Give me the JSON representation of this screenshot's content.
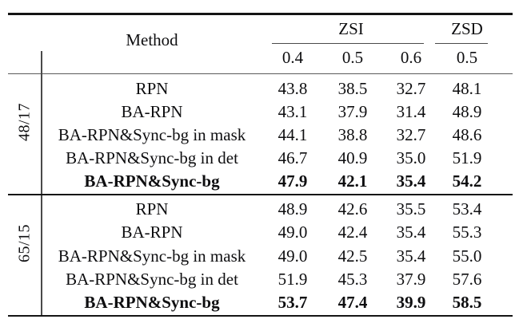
{
  "table": {
    "header": {
      "method_label": "Method",
      "zsi_label": "ZSI",
      "zsd_label": "ZSD",
      "zsi_thresholds": [
        "0.4",
        "0.5",
        "0.6"
      ],
      "zsd_threshold": "0.5"
    },
    "groups": [
      {
        "split": "48/17",
        "rows": [
          {
            "method": "RPN",
            "values": [
              "43.8",
              "38.5",
              "32.7",
              "48.1"
            ]
          },
          {
            "method": "BA-RPN",
            "values": [
              "43.1",
              "37.9",
              "31.4",
              "48.9"
            ]
          },
          {
            "method": "BA-RPN&Sync-bg in mask",
            "values": [
              "44.1",
              "38.8",
              "32.7",
              "48.6"
            ]
          },
          {
            "method": "BA-RPN&Sync-bg in det",
            "values": [
              "46.7",
              "40.9",
              "35.0",
              "51.9"
            ]
          },
          {
            "method": "BA-RPN&Sync-bg",
            "values": [
              "47.9",
              "42.1",
              "35.4",
              "54.2"
            ],
            "bold": true
          }
        ]
      },
      {
        "split": "65/15",
        "rows": [
          {
            "method": "RPN",
            "values": [
              "48.9",
              "42.6",
              "35.5",
              "53.4"
            ]
          },
          {
            "method": "BA-RPN",
            "values": [
              "49.0",
              "42.4",
              "35.4",
              "55.3"
            ]
          },
          {
            "method": "BA-RPN&Sync-bg in mask",
            "values": [
              "49.0",
              "42.5",
              "35.4",
              "55.0"
            ]
          },
          {
            "method": "BA-RPN&Sync-bg in det",
            "values": [
              "51.9",
              "45.3",
              "37.9",
              "57.6"
            ]
          },
          {
            "method": "BA-RPN&Sync-bg",
            "values": [
              "53.7",
              "47.4",
              "39.9",
              "58.5"
            ],
            "bold": true
          }
        ]
      }
    ],
    "colors": {
      "background": "#ffffff",
      "text": "#0e0e10",
      "thick_rule": "#141414",
      "thin_rule": "#5a5a5a"
    }
  }
}
